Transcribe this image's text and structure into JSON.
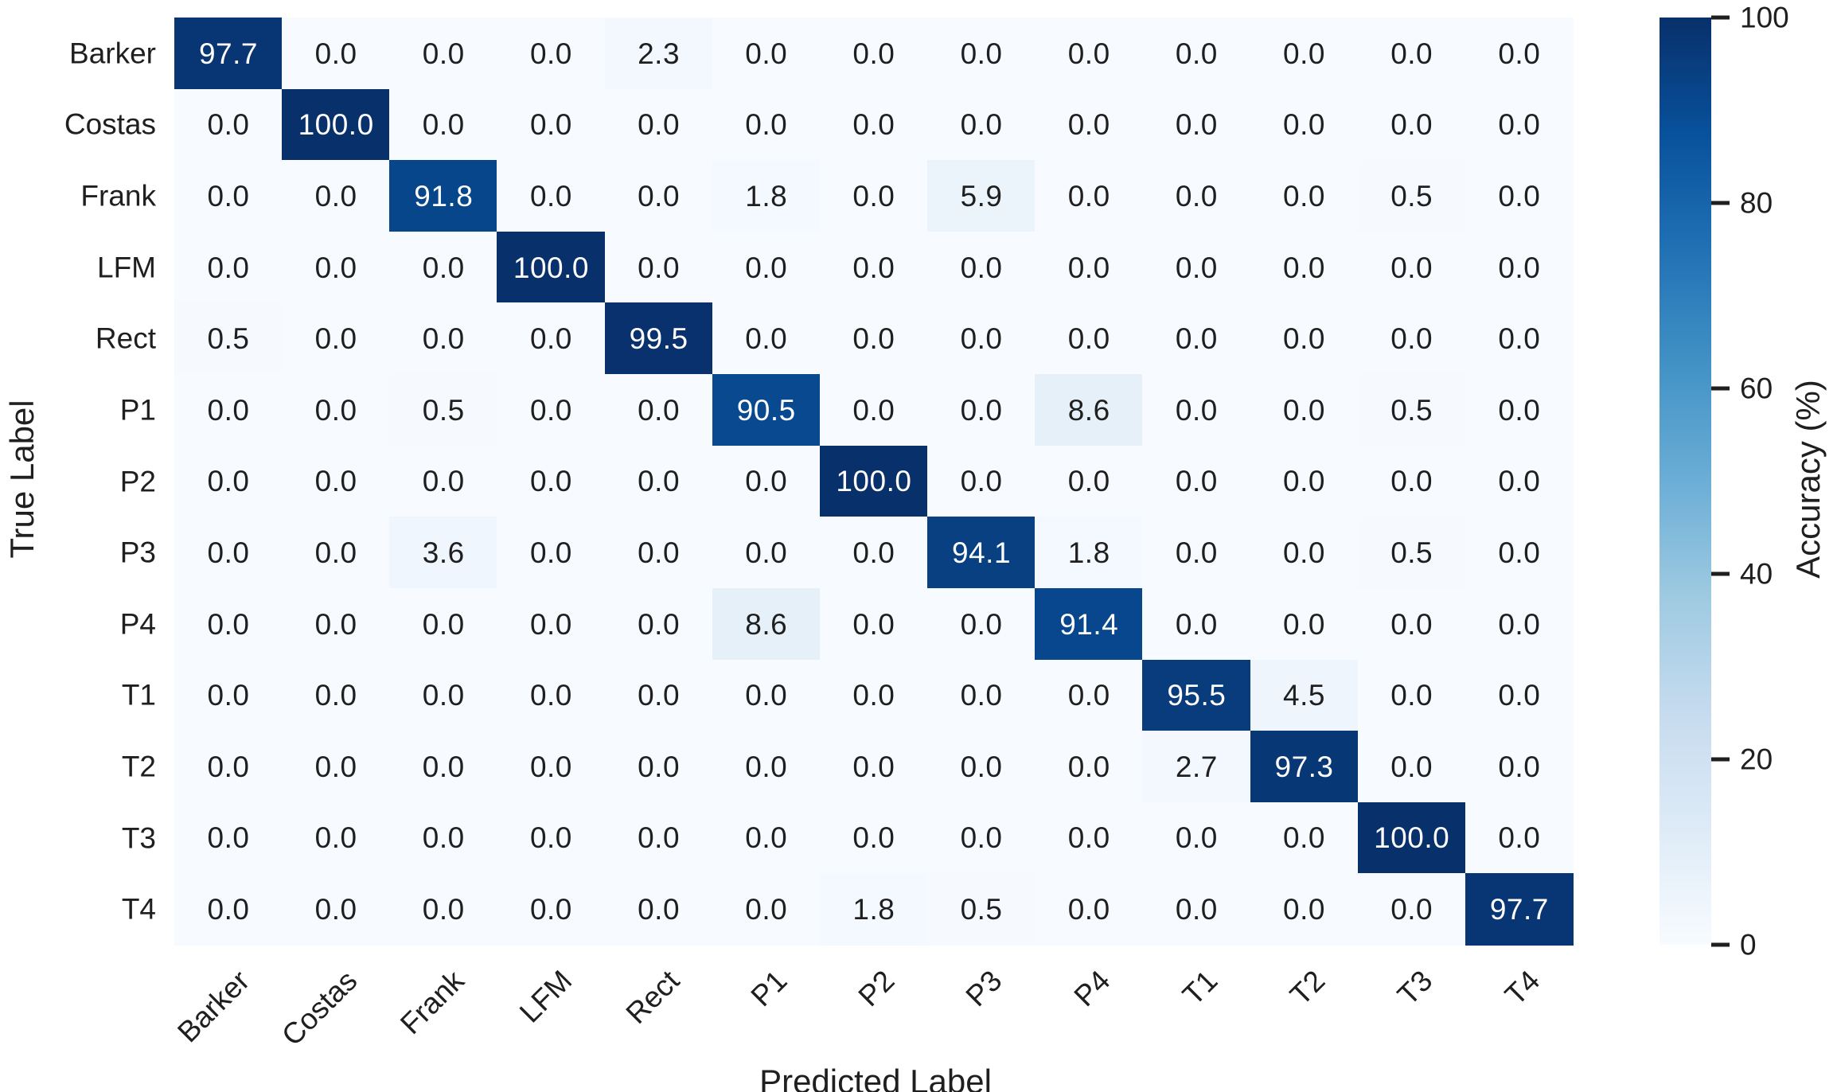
{
  "chart_data": {
    "type": "heatmap",
    "title": "",
    "xlabel": "Predicted Label",
    "ylabel": "True Label",
    "categories": [
      "Barker",
      "Costas",
      "Frank",
      "LFM",
      "Rect",
      "P1",
      "P2",
      "P3",
      "P4",
      "T1",
      "T2",
      "T3",
      "T4"
    ],
    "matrix": [
      [
        97.7,
        0.0,
        0.0,
        0.0,
        2.3,
        0.0,
        0.0,
        0.0,
        0.0,
        0.0,
        0.0,
        0.0,
        0.0
      ],
      [
        0.0,
        100.0,
        0.0,
        0.0,
        0.0,
        0.0,
        0.0,
        0.0,
        0.0,
        0.0,
        0.0,
        0.0,
        0.0
      ],
      [
        0.0,
        0.0,
        91.8,
        0.0,
        0.0,
        1.8,
        0.0,
        5.9,
        0.0,
        0.0,
        0.0,
        0.5,
        0.0
      ],
      [
        0.0,
        0.0,
        0.0,
        100.0,
        0.0,
        0.0,
        0.0,
        0.0,
        0.0,
        0.0,
        0.0,
        0.0,
        0.0
      ],
      [
        0.5,
        0.0,
        0.0,
        0.0,
        99.5,
        0.0,
        0.0,
        0.0,
        0.0,
        0.0,
        0.0,
        0.0,
        0.0
      ],
      [
        0.0,
        0.0,
        0.5,
        0.0,
        0.0,
        90.5,
        0.0,
        0.0,
        8.6,
        0.0,
        0.0,
        0.5,
        0.0
      ],
      [
        0.0,
        0.0,
        0.0,
        0.0,
        0.0,
        0.0,
        100.0,
        0.0,
        0.0,
        0.0,
        0.0,
        0.0,
        0.0
      ],
      [
        0.0,
        0.0,
        3.6,
        0.0,
        0.0,
        0.0,
        0.0,
        94.1,
        1.8,
        0.0,
        0.0,
        0.5,
        0.0
      ],
      [
        0.0,
        0.0,
        0.0,
        0.0,
        0.0,
        8.6,
        0.0,
        0.0,
        91.4,
        0.0,
        0.0,
        0.0,
        0.0
      ],
      [
        0.0,
        0.0,
        0.0,
        0.0,
        0.0,
        0.0,
        0.0,
        0.0,
        0.0,
        95.5,
        4.5,
        0.0,
        0.0
      ],
      [
        0.0,
        0.0,
        0.0,
        0.0,
        0.0,
        0.0,
        0.0,
        0.0,
        0.0,
        2.7,
        97.3,
        0.0,
        0.0
      ],
      [
        0.0,
        0.0,
        0.0,
        0.0,
        0.0,
        0.0,
        0.0,
        0.0,
        0.0,
        0.0,
        0.0,
        100.0,
        0.0
      ],
      [
        0.0,
        0.0,
        0.0,
        0.0,
        0.0,
        0.0,
        1.8,
        0.5,
        0.0,
        0.0,
        0.0,
        0.0,
        97.7
      ]
    ],
    "value_unit": "%",
    "value_decimals": 1,
    "colorbar": {
      "label": "Accuracy (%)",
      "min": 0,
      "max": 100,
      "ticks": [
        100,
        80,
        60,
        40,
        20,
        0
      ],
      "colormap": "Blues",
      "gradient_stops": [
        "#f7fbff",
        "#deebf7",
        "#c6dbef",
        "#9ecae1",
        "#6baed6",
        "#4292c6",
        "#2171b5",
        "#08519c",
        "#08306b"
      ]
    },
    "colors": {
      "dark_cell_text": "#ffffff",
      "light_cell_text": "#1f1f1f",
      "axis_text": "#1f1f1f",
      "background": "#ffffff"
    },
    "legend_position": "right",
    "grid": false
  }
}
